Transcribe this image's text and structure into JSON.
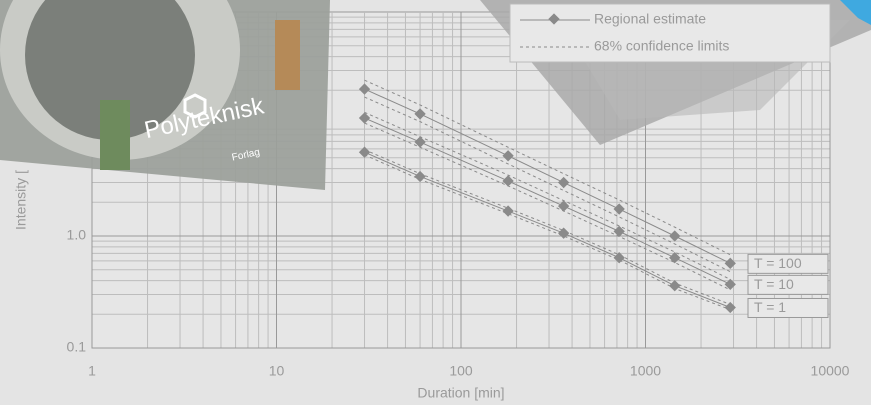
{
  "chart_data": {
    "type": "line",
    "x_label": "Duration [min]",
    "y_label": "Intensity [",
    "log_x": true,
    "log_y": true,
    "grid": true,
    "xlim": [
      1,
      10000
    ],
    "xticks": [
      1,
      10,
      100,
      1000,
      10000
    ],
    "ylim": [
      0.1,
      100
    ],
    "yticks": [
      0.1,
      {
        "value": 1,
        "label": "1.0"
      }
    ],
    "legend": [
      "Regional estimate",
      "68% confidence limits"
    ],
    "legend_position": "upper right",
    "color": "#8a8a8a",
    "x": [
      30,
      60,
      180,
      360,
      720,
      1440,
      2880
    ],
    "series": [
      {
        "name": "T = 1",
        "values": [
          5.6,
          3.4,
          1.67,
          1.06,
          0.64,
          0.36,
          0.23
        ],
        "upper": [
          5.9,
          3.6,
          1.77,
          1.12,
          0.68,
          0.38,
          0.245
        ],
        "lower": [
          5.3,
          3.2,
          1.58,
          1.0,
          0.61,
          0.34,
          0.22
        ]
      },
      {
        "name": "T = 10",
        "values": [
          11.3,
          6.9,
          3.1,
          1.85,
          1.1,
          0.64,
          0.37
        ],
        "upper": [
          12.7,
          7.7,
          3.5,
          2.07,
          1.23,
          0.72,
          0.41
        ],
        "lower": [
          10.2,
          6.2,
          2.8,
          1.67,
          0.99,
          0.58,
          0.33
        ]
      },
      {
        "name": "T = 100",
        "values": [
          20.5,
          12.3,
          5.2,
          3.0,
          1.74,
          1.0,
          0.57
        ],
        "upper": [
          24.6,
          14.8,
          6.2,
          3.6,
          2.1,
          1.2,
          0.68
        ],
        "lower": [
          17.4,
          10.5,
          4.4,
          2.55,
          1.48,
          0.85,
          0.48
        ]
      }
    ],
    "photo_caption": [
      "Polyteknisk",
      "Forlag"
    ]
  }
}
